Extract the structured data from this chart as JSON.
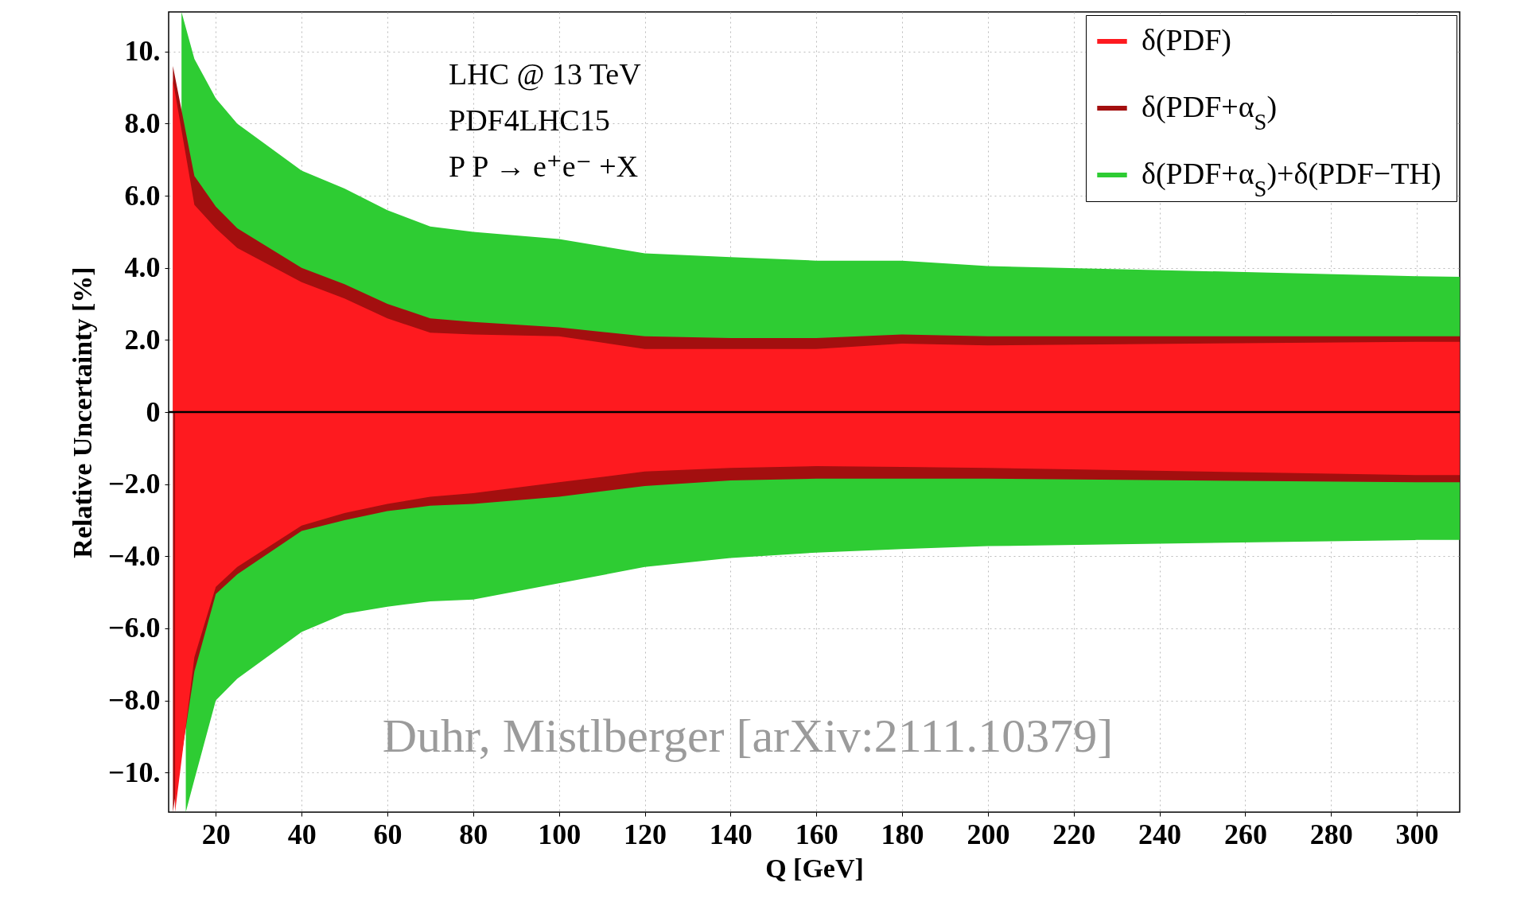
{
  "chart_data": {
    "type": "area",
    "xlabel": "Q [GeV]",
    "ylabel": "Relative Uncertainty [%]",
    "annotations": [
      "LHC @ 13 TeV",
      "PDF4LHC15",
      "P P → e⁺e⁻ +X",
      "Duhr, Mistlberger [arXiv:2111.10379]"
    ],
    "xlim": [
      9,
      310
    ],
    "ylim": [
      -11.1,
      11.1
    ],
    "xticks": [
      20,
      40,
      60,
      80,
      100,
      120,
      140,
      160,
      180,
      200,
      220,
      240,
      260,
      280,
      300
    ],
    "yticks": [
      {
        "value": -10,
        "label": "−10."
      },
      {
        "value": -8,
        "label": "−8.0"
      },
      {
        "value": -6,
        "label": "−6.0"
      },
      {
        "value": -4,
        "label": "−4.0"
      },
      {
        "value": -2,
        "label": "−2.0"
      },
      0,
      {
        "value": 2,
        "label": "2.0"
      },
      {
        "value": 4,
        "label": "4.0"
      },
      {
        "value": 6,
        "label": "6.0"
      },
      {
        "value": 8,
        "label": "8.0"
      },
      {
        "value": 10,
        "label": "10."
      }
    ],
    "grid": true,
    "legend": "top right",
    "ref_lines": [
      {
        "axis": "y",
        "value": 0,
        "color": "#000000"
      }
    ],
    "series": [
      {
        "name": "δ(PDF)",
        "color": "#fe1a1f",
        "x": [
          10,
          15,
          20,
          25,
          40,
          50,
          60,
          70,
          80,
          100,
          120,
          140,
          160,
          180,
          200,
          300,
          310
        ],
        "values": [
          9.2,
          5.75,
          5.1,
          4.55,
          3.6,
          3.15,
          2.6,
          2.2,
          2.15,
          2.1,
          1.75,
          1.75,
          1.75,
          1.9,
          1.85,
          1.95,
          1.95
        ]
      },
      {
        "color": "#fe1a1f",
        "x": [
          10.5,
          15,
          20,
          25,
          40,
          50,
          60,
          70,
          80,
          100,
          120,
          140,
          160,
          180,
          200,
          300,
          310
        ],
        "values": [
          -11.1,
          -6.8,
          -4.85,
          -4.3,
          -3.15,
          -2.8,
          -2.55,
          -2.35,
          -2.25,
          -1.95,
          -1.65,
          -1.55,
          -1.5,
          -1.52,
          -1.55,
          -1.75,
          -1.75
        ]
      },
      {
        "name": "δ(PDF+α$_{S}$)",
        "color": "#a30f0f",
        "x": [
          10,
          15,
          20,
          25,
          40,
          50,
          60,
          70,
          80,
          100,
          120,
          140,
          160,
          180,
          200,
          300,
          310
        ],
        "values": [
          9.6,
          6.55,
          5.7,
          5.1,
          4.0,
          3.55,
          3.0,
          2.6,
          2.5,
          2.35,
          2.1,
          2.05,
          2.05,
          2.15,
          2.1,
          2.1,
          2.1
        ]
      },
      {
        "color": "#a30f0f",
        "x": [
          10,
          15,
          20,
          25,
          40,
          50,
          60,
          70,
          80,
          100,
          120,
          140,
          160,
          180,
          200,
          300,
          310
        ],
        "values": [
          -11.1,
          -7.2,
          -5.05,
          -4.5,
          -3.3,
          -3.0,
          -2.75,
          -2.6,
          -2.55,
          -2.35,
          -2.05,
          -1.9,
          -1.85,
          -1.85,
          -1.85,
          -1.95,
          -1.95
        ]
      },
      {
        "name": "δ(PDF+α$_{S}$)+δ(PDF−TH)",
        "color": "#2ecc33",
        "x": [
          12,
          15,
          20,
          25,
          40,
          50,
          60,
          70,
          80,
          100,
          120,
          140,
          160,
          180,
          200,
          300,
          310
        ],
        "values": [
          11.1,
          9.8,
          8.7,
          8.0,
          6.7,
          6.2,
          5.6,
          5.15,
          5.0,
          4.8,
          4.4,
          4.3,
          4.2,
          4.2,
          4.05,
          3.77,
          3.75
        ]
      },
      {
        "color": "#2ecc33",
        "x": [
          13,
          15,
          20,
          25,
          40,
          50,
          60,
          70,
          80,
          100,
          120,
          140,
          160,
          180,
          200,
          300,
          310
        ],
        "values": [
          -11.1,
          -10.2,
          -8.0,
          -7.4,
          -6.1,
          -5.6,
          -5.4,
          -5.25,
          -5.2,
          -4.75,
          -4.3,
          -4.05,
          -3.9,
          -3.8,
          -3.72,
          -3.55,
          -3.55
        ]
      }
    ]
  }
}
